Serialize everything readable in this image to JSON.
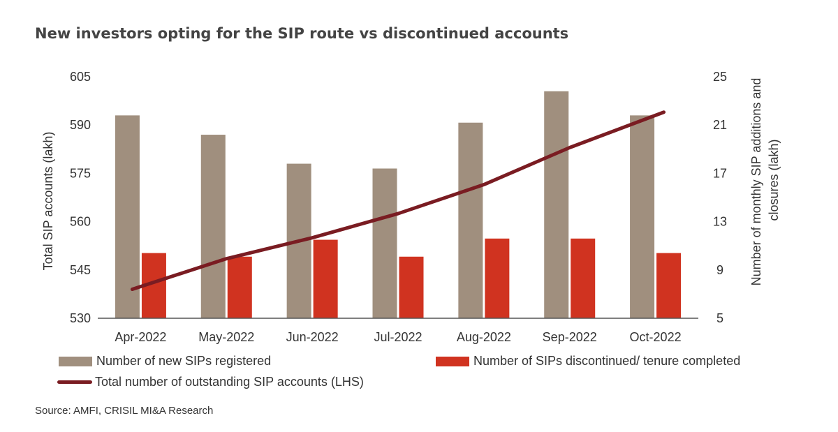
{
  "chart_data": {
    "type": "bar",
    "title": "New investors opting for the SIP route vs discontinued accounts",
    "categories": [
      "Apr-2022",
      "May-2022",
      "Jun-2022",
      "Jul-2022",
      "Aug-2022",
      "Sep-2022",
      "Oct-2022"
    ],
    "series": [
      {
        "name": "Number of new SIPs registered",
        "type": "bar",
        "axis": "right",
        "color": "#a08f7e",
        "values": [
          21.8,
          20.2,
          17.8,
          17.4,
          21.2,
          23.8,
          21.8
        ]
      },
      {
        "name": "Number of SIPs discontinued/ tenure completed",
        "type": "bar",
        "axis": "right",
        "color": "#d03320",
        "values": [
          10.4,
          10.1,
          11.5,
          10.1,
          11.6,
          11.6,
          10.4
        ]
      },
      {
        "name": "Total number of outstanding SIP accounts (LHS)",
        "type": "line",
        "axis": "left",
        "color": "#7a1c22",
        "values": [
          539,
          548.5,
          555,
          562.5,
          571.5,
          583,
          594
        ]
      }
    ],
    "y_left": {
      "label": "Total SIP accounts (lakh)",
      "range": [
        530,
        605
      ],
      "ticks": [
        605,
        590,
        575,
        560,
        545,
        530
      ]
    },
    "y_right": {
      "label_lines": [
        "Number of monthly SIP additions and",
        "closures (lakh)"
      ],
      "range": [
        5,
        25
      ],
      "ticks": [
        25,
        21,
        17,
        13,
        9,
        5
      ]
    },
    "legend_placement": "bottom",
    "grid": false
  },
  "source": "Source: AMFI, CRISIL MI&A Research"
}
